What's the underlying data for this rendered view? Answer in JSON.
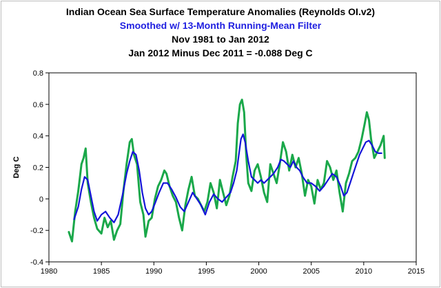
{
  "chart_data": {
    "type": "line",
    "title": "Indian Ocean Sea Surface Temperature Anomalies  (Reynolds OI.v2)",
    "subtitle": "Smoothed w/ 13-Month Running-Mean Filter",
    "subtitle_color": "#1f1fe0",
    "period": "Nov 1981 to Jan 2012",
    "note": "Jan 2012 Minus Dec 2011 = -0.088 Deg C",
    "xlabel": "",
    "ylabel": "Deg C",
    "xlim": [
      1980,
      2015
    ],
    "ylim": [
      -0.4,
      0.8
    ],
    "x_ticks": [
      1980,
      1985,
      1990,
      1995,
      2000,
      2005,
      2010,
      2015
    ],
    "y_ticks": [
      -0.4,
      -0.2,
      0,
      0.2,
      0.4,
      0.6,
      0.8
    ],
    "y_tick_labels": [
      "-0.4",
      "-0.2",
      "0",
      "0.2",
      "0.4",
      "0.6",
      "0.8"
    ],
    "grid": false,
    "legend": "none",
    "series": [
      {
        "color": "#1aa84a",
        "x": [
          1981.9,
          1982.2,
          1982.5,
          1982.8,
          1983.1,
          1983.3,
          1983.5,
          1983.7,
          1984.0,
          1984.3,
          1984.6,
          1985.0,
          1985.3,
          1985.6,
          1985.9,
          1986.2,
          1986.5,
          1986.8,
          1987.1,
          1987.4,
          1987.7,
          1987.9,
          1988.1,
          1988.4,
          1988.7,
          1989.0,
          1989.2,
          1989.5,
          1989.8,
          1990.1,
          1990.4,
          1990.7,
          1991.0,
          1991.2,
          1991.5,
          1991.8,
          1992.1,
          1992.4,
          1992.7,
          1993.0,
          1993.3,
          1993.6,
          1993.9,
          1994.2,
          1994.5,
          1994.8,
          1995.1,
          1995.4,
          1995.7,
          1996.0,
          1996.3,
          1996.6,
          1996.9,
          1997.2,
          1997.5,
          1997.8,
          1998.0,
          1998.2,
          1998.4,
          1998.6,
          1998.8,
          1999.0,
          1999.3,
          1999.6,
          1999.9,
          2000.2,
          2000.5,
          2000.8,
          2001.1,
          2001.4,
          2001.7,
          2002.0,
          2002.3,
          2002.6,
          2002.9,
          2003.2,
          2003.5,
          2003.8,
          2004.1,
          2004.4,
          2004.7,
          2005.0,
          2005.3,
          2005.6,
          2005.9,
          2006.2,
          2006.5,
          2006.8,
          2007.1,
          2007.4,
          2007.7,
          2008.0,
          2008.3,
          2008.6,
          2008.9,
          2009.2,
          2009.5,
          2009.8,
          2010.1,
          2010.3,
          2010.5,
          2010.7,
          2011.0,
          2011.3,
          2011.6,
          2011.9,
          2012.0
        ],
        "values": [
          -0.21,
          -0.27,
          -0.08,
          0.05,
          0.22,
          0.26,
          0.32,
          0.1,
          -0.02,
          -0.12,
          -0.19,
          -0.22,
          -0.12,
          -0.18,
          -0.14,
          -0.26,
          -0.2,
          -0.16,
          0.05,
          0.22,
          0.36,
          0.38,
          0.28,
          0.22,
          -0.02,
          -0.1,
          -0.24,
          -0.14,
          -0.12,
          0.0,
          0.08,
          0.12,
          0.18,
          0.16,
          0.08,
          0.02,
          -0.02,
          -0.12,
          -0.2,
          -0.04,
          0.06,
          0.14,
          0.02,
          0.0,
          -0.04,
          -0.08,
          -0.02,
          0.1,
          0.04,
          -0.06,
          0.12,
          0.04,
          -0.04,
          0.02,
          0.14,
          0.24,
          0.48,
          0.6,
          0.63,
          0.55,
          0.28,
          0.1,
          0.05,
          0.18,
          0.22,
          0.14,
          0.04,
          -0.02,
          0.22,
          0.16,
          0.1,
          0.22,
          0.36,
          0.3,
          0.18,
          0.28,
          0.2,
          0.26,
          0.16,
          0.02,
          0.12,
          0.08,
          -0.03,
          0.12,
          0.06,
          0.1,
          0.24,
          0.2,
          0.12,
          0.18,
          0.04,
          -0.08,
          0.1,
          0.16,
          0.24,
          0.26,
          0.3,
          0.38,
          0.48,
          0.55,
          0.5,
          0.38,
          0.26,
          0.3,
          0.34,
          0.4,
          0.26
        ]
      },
      {
        "color": "#1414d8",
        "x": [
          1982.4,
          1982.8,
          1983.1,
          1983.4,
          1983.7,
          1984.0,
          1984.3,
          1984.6,
          1985.0,
          1985.4,
          1985.8,
          1986.2,
          1986.6,
          1987.0,
          1987.4,
          1987.7,
          1988.0,
          1988.3,
          1988.6,
          1988.9,
          1989.2,
          1989.5,
          1989.8,
          1990.1,
          1990.5,
          1990.9,
          1991.3,
          1991.7,
          1992.1,
          1992.5,
          1992.9,
          1993.3,
          1993.7,
          1994.1,
          1994.5,
          1994.9,
          1995.3,
          1995.7,
          1996.1,
          1996.5,
          1996.9,
          1997.3,
          1997.6,
          1997.9,
          1998.1,
          1998.3,
          1998.5,
          1998.7,
          1999.0,
          1999.3,
          1999.6,
          1999.9,
          2000.2,
          2000.5,
          2000.8,
          2001.1,
          2001.4,
          2001.8,
          2002.1,
          2002.4,
          2002.7,
          2003.0,
          2003.3,
          2003.6,
          2003.9,
          2004.2,
          2004.6,
          2005.0,
          2005.4,
          2005.8,
          2006.2,
          2006.6,
          2007.0,
          2007.4,
          2007.8,
          2008.1,
          2008.4,
          2008.7,
          2009.0,
          2009.3,
          2009.6,
          2009.9,
          2010.2,
          2010.5,
          2010.8,
          2011.1,
          2011.4,
          2011.7
        ],
        "values": [
          -0.13,
          -0.05,
          0.06,
          0.14,
          0.12,
          0.02,
          -0.08,
          -0.14,
          -0.1,
          -0.08,
          -0.12,
          -0.15,
          -0.1,
          0.02,
          0.16,
          0.24,
          0.3,
          0.28,
          0.18,
          0.04,
          -0.06,
          -0.1,
          -0.08,
          -0.03,
          0.04,
          0.1,
          0.1,
          0.06,
          0.01,
          -0.05,
          -0.08,
          -0.02,
          0.04,
          0.0,
          -0.04,
          -0.1,
          -0.02,
          0.03,
          0.0,
          -0.02,
          0.01,
          0.04,
          0.1,
          0.18,
          0.28,
          0.38,
          0.41,
          0.36,
          0.24,
          0.14,
          0.12,
          0.1,
          0.12,
          0.1,
          0.12,
          0.14,
          0.16,
          0.2,
          0.25,
          0.24,
          0.22,
          0.2,
          0.24,
          0.2,
          0.18,
          0.14,
          0.1,
          0.1,
          0.08,
          0.05,
          0.08,
          0.12,
          0.16,
          0.14,
          0.08,
          0.02,
          0.04,
          0.1,
          0.16,
          0.22,
          0.28,
          0.32,
          0.36,
          0.37,
          0.34,
          0.3,
          0.29,
          0.29
        ]
      }
    ]
  }
}
